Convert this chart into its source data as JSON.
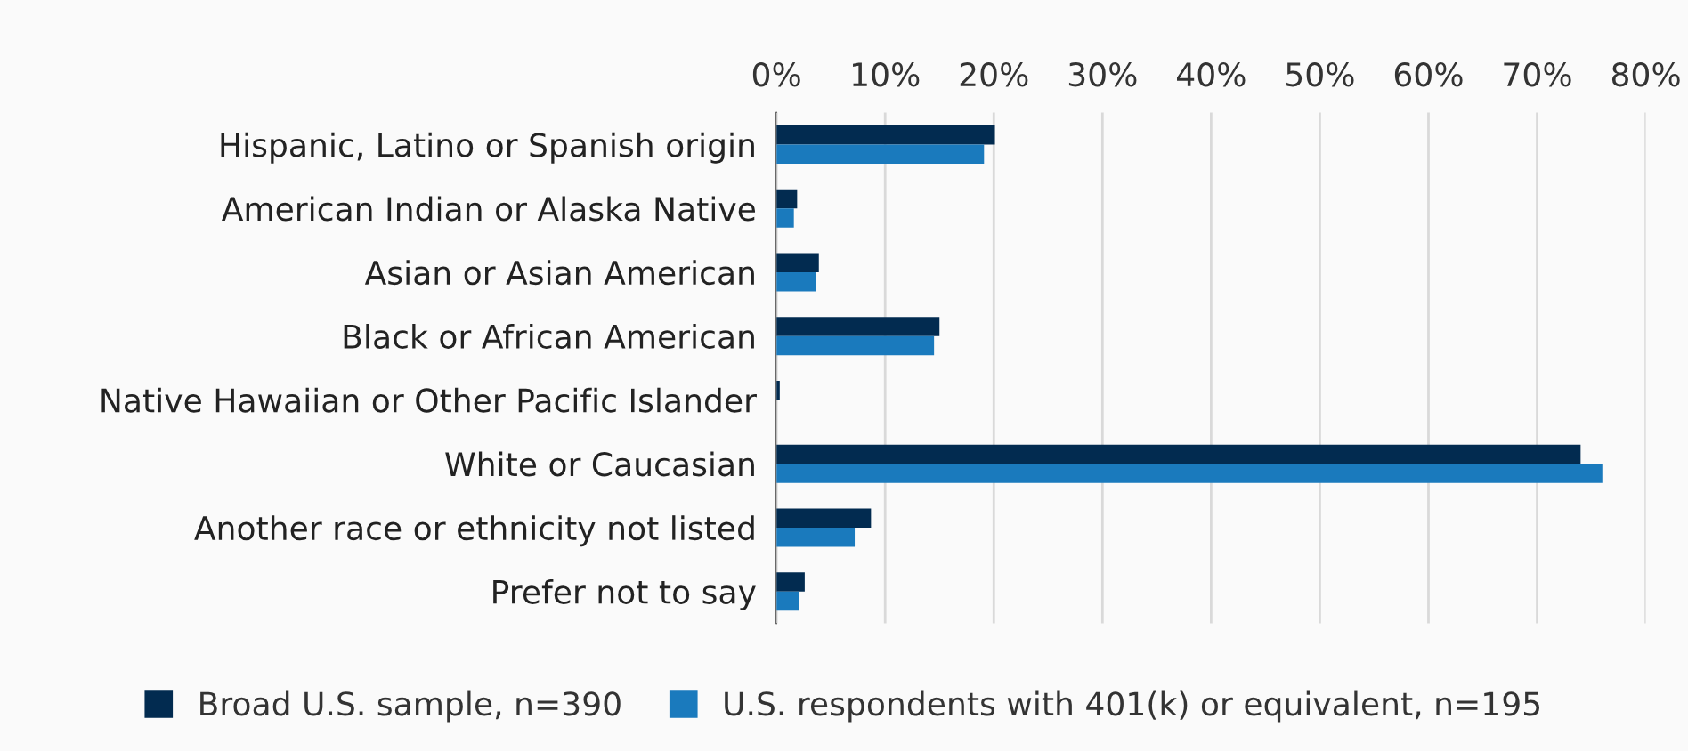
{
  "chart_data": {
    "type": "bar",
    "orientation": "horizontal",
    "categories": [
      "Hispanic, Latino or Spanish origin",
      "American Indian or Alaska Native",
      "Asian or Asian American",
      "Black or African American",
      "Native Hawaiian or Other Pacific Islander",
      "White or Caucasian",
      "Another race or ethnicity not listed",
      "Prefer not to say"
    ],
    "series": [
      {
        "name": "Broad U.S. sample, n=390",
        "color": "#022b50",
        "values": [
          20.1,
          1.9,
          3.9,
          15.0,
          0.3,
          74.0,
          8.7,
          2.6
        ]
      },
      {
        "name": "U.S. respondents with 401(k) or equivalent, n=195",
        "color": "#1a7abd",
        "values": [
          19.1,
          1.6,
          3.6,
          14.5,
          0,
          76.0,
          7.2,
          2.1
        ]
      }
    ],
    "xlim": [
      0,
      80
    ],
    "xticks": [
      {
        "value": 0,
        "label": "0%"
      },
      {
        "value": 10,
        "label": "10%"
      },
      {
        "value": 20,
        "label": "20%"
      },
      {
        "value": 30,
        "label": "30%"
      },
      {
        "value": 40,
        "label": "40%"
      },
      {
        "value": 50,
        "label": "50%"
      },
      {
        "value": 60,
        "label": "60%"
      },
      {
        "value": 70,
        "label": "70%"
      },
      {
        "value": 80,
        "label": "80%"
      }
    ],
    "grid": "x",
    "legend": "bottom"
  }
}
